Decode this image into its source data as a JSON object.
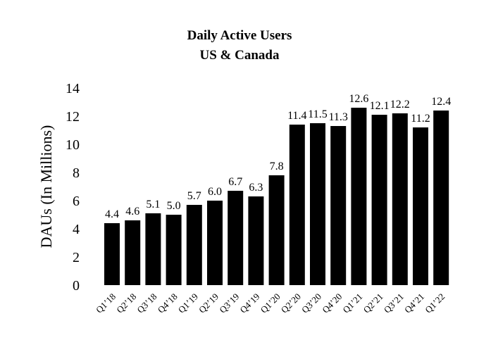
{
  "chart_data": {
    "type": "bar",
    "title": "Daily Active Users",
    "subtitle": "US & Canada",
    "xlabel": "",
    "ylabel": "DAUs (In Millions)",
    "ylim": [
      0,
      14
    ],
    "yticks": [
      0,
      2,
      4,
      6,
      8,
      10,
      12,
      14
    ],
    "grid": false,
    "bar_color": "#000000",
    "categories": [
      "Q1’18",
      "Q2’18",
      "Q3’18",
      "Q4’18",
      "Q1’19",
      "Q2’19",
      "Q3’19",
      "Q4’19",
      "Q1’20",
      "Q2’20",
      "Q3’20",
      "Q4’20",
      "Q1’21",
      "Q2’21",
      "Q3’21",
      "Q4’21",
      "Q1’22"
    ],
    "values": [
      4.4,
      4.6,
      5.1,
      5.0,
      5.7,
      6.0,
      6.7,
      6.3,
      7.8,
      11.4,
      11.5,
      11.3,
      12.6,
      12.1,
      12.2,
      11.2,
      12.4
    ]
  }
}
